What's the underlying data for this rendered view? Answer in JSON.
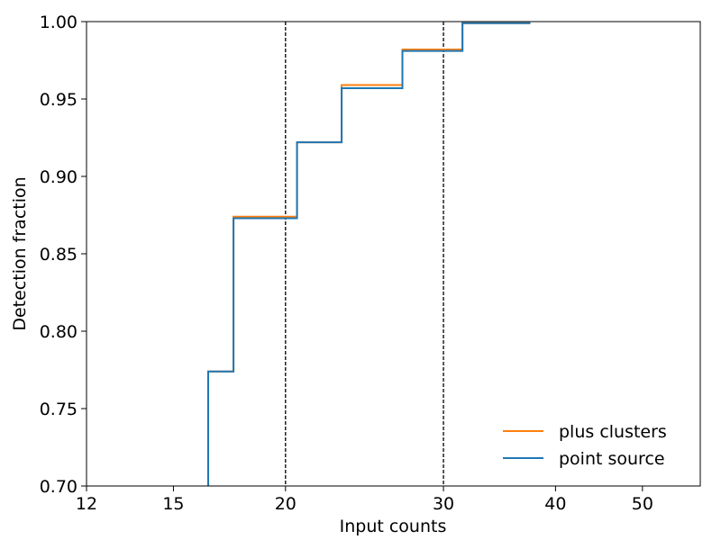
{
  "chart_data": {
    "type": "line",
    "drawstyle": "steps-post",
    "xscale": "log",
    "xlabel": "Input counts",
    "ylabel": "Detection fraction",
    "xlim": [
      12,
      58
    ],
    "ylim": [
      0.7,
      1.0
    ],
    "xticks": [
      {
        "value": 12,
        "label": "12"
      },
      {
        "value": 15,
        "label": "15"
      },
      {
        "value": 20,
        "label": "20"
      },
      {
        "value": 30,
        "label": "30"
      },
      {
        "value": 40,
        "label": "40"
      },
      {
        "value": 50,
        "label": "50"
      }
    ],
    "yticks": [
      {
        "value": 0.7,
        "label": "0.70"
      },
      {
        "value": 0.75,
        "label": "0.75"
      },
      {
        "value": 0.8,
        "label": "0.80"
      },
      {
        "value": 0.85,
        "label": "0.85"
      },
      {
        "value": 0.9,
        "label": "0.90"
      },
      {
        "value": 0.95,
        "label": "0.95"
      },
      {
        "value": 1.0,
        "label": "1.00"
      }
    ],
    "vlines": [
      20,
      30
    ],
    "legend_position": "bottom-right",
    "grid": false,
    "series": [
      {
        "name": "plus clusters",
        "color": "#ff7f0e",
        "x": [
          16.4,
          17.5,
          20.6,
          23.1,
          27.0,
          31.5,
          37.5
        ],
        "y": [
          0.774,
          0.874,
          0.922,
          0.959,
          0.982,
          0.999,
          0.999
        ]
      },
      {
        "name": "point source",
        "color": "#1f77b4",
        "x": [
          16.4,
          17.5,
          20.6,
          23.1,
          27.0,
          31.5,
          37.5
        ],
        "y": [
          0.774,
          0.873,
          0.922,
          0.957,
          0.981,
          0.999,
          0.999
        ]
      }
    ]
  }
}
